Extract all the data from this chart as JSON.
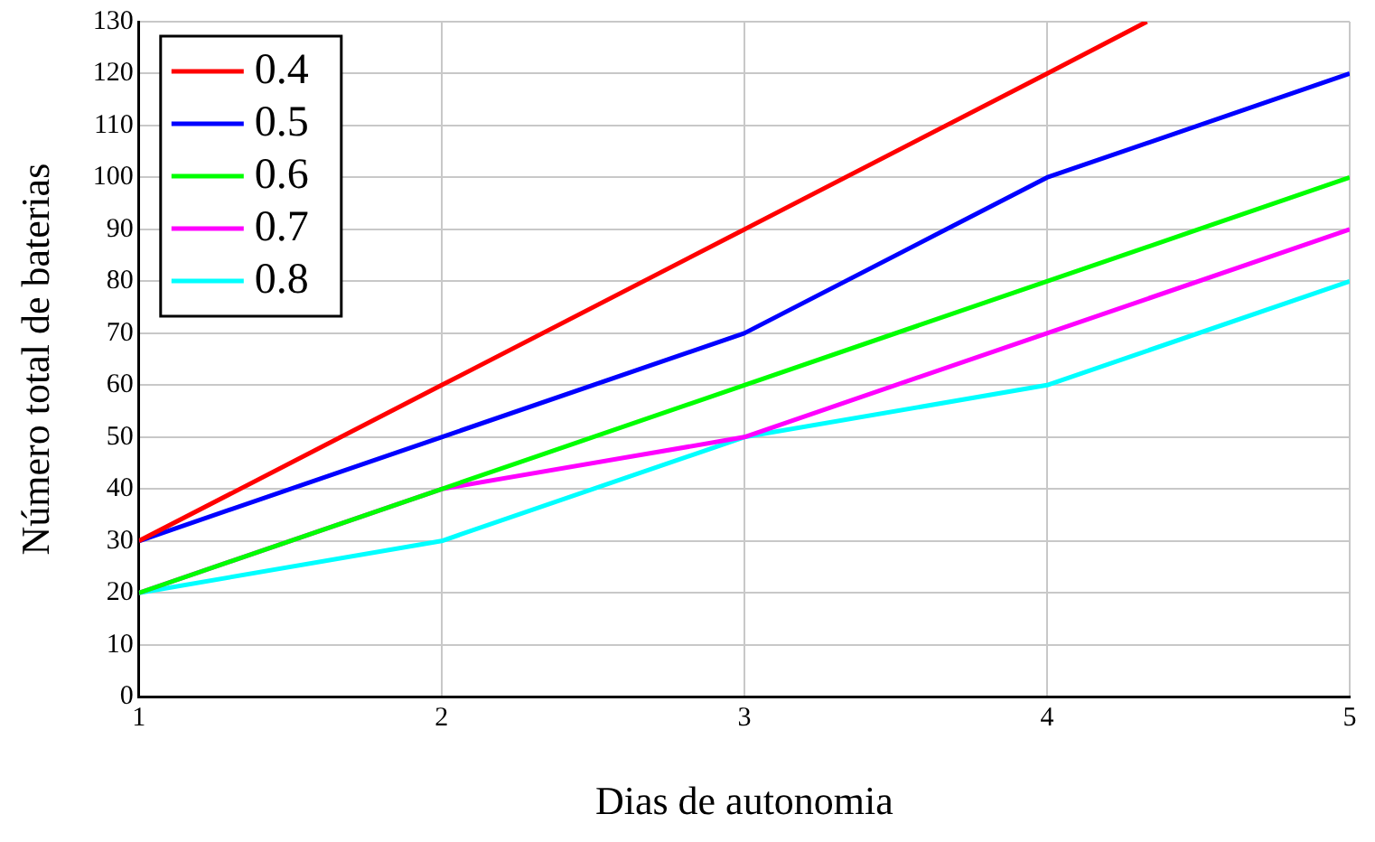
{
  "chart_data": {
    "type": "line",
    "xlabel": "Dias de autonomia",
    "ylabel": "Número total de baterias",
    "x": [
      1,
      2,
      3,
      4,
      5
    ],
    "series": [
      {
        "name": "0.4",
        "color": "#ff0000",
        "x": [
          1,
          2,
          3,
          4,
          4.33
        ],
        "values": [
          30,
          60,
          90,
          120,
          130
        ]
      },
      {
        "name": "0.5",
        "color": "#0000ff",
        "values": [
          30,
          50,
          70,
          100,
          120
        ]
      },
      {
        "name": "0.6",
        "color": "#00ff00",
        "values": [
          20,
          40,
          60,
          80,
          100
        ]
      },
      {
        "name": "0.7",
        "color": "#ff00ff",
        "values": [
          20,
          40,
          50,
          70,
          90
        ]
      },
      {
        "name": "0.8",
        "color": "#00ffff",
        "values": [
          20,
          30,
          50,
          60,
          80
        ]
      }
    ],
    "xlim": [
      1,
      5
    ],
    "xticks": [
      1,
      2,
      3,
      4,
      5
    ],
    "ylim": [
      0,
      130
    ],
    "yticks": [
      0,
      10,
      20,
      30,
      40,
      50,
      60,
      70,
      80,
      90,
      100,
      110,
      120,
      130
    ],
    "grid": true,
    "legend": "top left",
    "marker": "none",
    "line_style": "solid"
  }
}
